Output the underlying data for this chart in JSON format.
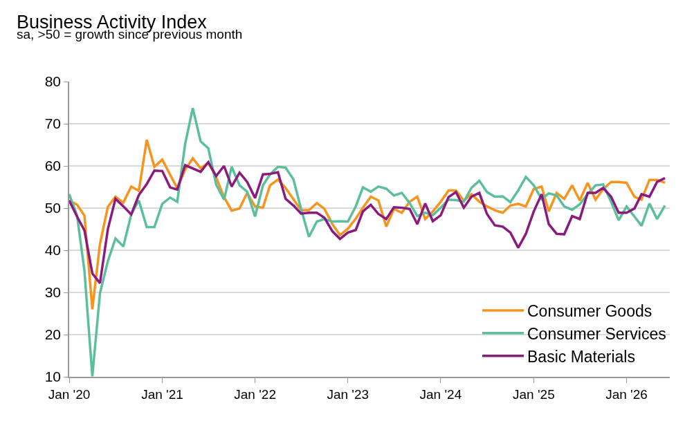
{
  "chart_data": {
    "type": "line",
    "title": "Business Activity Index",
    "subtitle": "sa, >50 = growth since previous month",
    "x": [
      "2020-01",
      "2020-02",
      "2020-03",
      "2020-04",
      "2020-05",
      "2020-06",
      "2020-07",
      "2020-08",
      "2020-09",
      "2020-10",
      "2020-11",
      "2020-12",
      "2021-01",
      "2021-02",
      "2021-03",
      "2021-04",
      "2021-05",
      "2021-06",
      "2021-07",
      "2021-08",
      "2021-09",
      "2021-10",
      "2021-11",
      "2021-12",
      "2022-01",
      "2022-02",
      "2022-03",
      "2022-04",
      "2022-05",
      "2022-06",
      "2022-07",
      "2022-08",
      "2022-09",
      "2022-10",
      "2022-11",
      "2022-12",
      "2023-01",
      "2023-02",
      "2023-03",
      "2023-04",
      "2023-05",
      "2023-06",
      "2023-07",
      "2023-08",
      "2023-09",
      "2023-10",
      "2023-11",
      "2023-12",
      "2024-01",
      "2024-02",
      "2024-03",
      "2024-04",
      "2024-05",
      "2024-06",
      "2024-07",
      "2024-08",
      "2024-09",
      "2024-10",
      "2024-11",
      "2024-12",
      "2025-01",
      "2025-02",
      "2025-03",
      "2025-04",
      "2025-05",
      "2025-06",
      "2025-07",
      "2025-08",
      "2025-09",
      "2025-10",
      "2025-11",
      "2025-12",
      "2026-01",
      "2026-02",
      "2026-03",
      "2026-04",
      "2026-05",
      "2026-06"
    ],
    "series": [
      {
        "name": "Consumer Goods",
        "color": "#f7941d",
        "values": [
          51.8,
          50.8,
          48.2,
          26.0,
          41.5,
          50.3,
          52.7,
          51.3,
          55.1,
          54.1,
          66.2,
          59.8,
          61.5,
          57.9,
          54.7,
          59.1,
          61.8,
          59.4,
          60.8,
          57.3,
          52.6,
          49.4,
          49.9,
          53.6,
          50.4,
          50.1,
          55.4,
          56.8,
          54.8,
          52.1,
          49.5,
          49.5,
          51.2,
          49.8,
          46.2,
          43.6,
          45.1,
          47.5,
          50.1,
          52.7,
          51.8,
          45.6,
          49.8,
          48.9,
          51.5,
          52.7,
          47.4,
          49.2,
          51.5,
          54.2,
          54.2,
          51.8,
          53.3,
          51.5,
          50.4,
          49.5,
          48.9,
          50.6,
          51.0,
          50.4,
          54.5,
          55.1,
          49.2,
          53.6,
          52.2,
          55.4,
          51.8,
          56.0,
          52.0,
          54.5,
          56.2,
          56.2,
          56.0,
          52.7,
          52.0,
          56.7,
          56.7,
          56.0
        ]
      },
      {
        "name": "Consumer Services",
        "color": "#5bbf9f",
        "values": [
          53.3,
          48.2,
          35.1,
          10.1,
          29.8,
          37.4,
          42.8,
          40.9,
          48.5,
          51.8,
          45.5,
          45.5,
          51.0,
          52.5,
          51.5,
          65.2,
          73.7,
          65.8,
          64.2,
          55.6,
          52.0,
          59.8,
          55.4,
          53.9,
          48.0,
          55.4,
          58.0,
          59.8,
          59.6,
          56.8,
          49.8,
          43.2,
          46.8,
          47.4,
          46.8,
          46.9,
          46.8,
          50.4,
          54.9,
          53.9,
          55.1,
          54.6,
          53.0,
          53.6,
          51.2,
          48.1,
          48.9,
          48.3,
          50.1,
          52.0,
          51.9,
          51.5,
          54.8,
          56.5,
          53.8,
          52.7,
          52.8,
          51.4,
          54.2,
          57.4,
          55.4,
          52.1,
          53.5,
          53.0,
          50.4,
          49.6,
          50.9,
          53.3,
          55.4,
          55.6,
          51.5,
          47.1,
          50.4,
          48.0,
          45.8,
          51.1,
          47.4,
          50.6
        ]
      },
      {
        "name": "Basic Materials",
        "color": "#8b1a7e",
        "values": [
          51.8,
          48.0,
          44.7,
          34.5,
          32.2,
          45.0,
          52.2,
          50.4,
          48.5,
          53.1,
          55.7,
          58.9,
          58.8,
          54.9,
          54.4,
          60.2,
          59.4,
          58.6,
          60.9,
          57.6,
          60.0,
          55.1,
          58.4,
          56.2,
          52.4,
          58.0,
          58.1,
          58.5,
          52.2,
          50.6,
          48.7,
          48.9,
          48.9,
          47.7,
          44.5,
          42.7,
          44.2,
          44.8,
          49.2,
          50.8,
          48.6,
          47.4,
          50.2,
          50.1,
          49.8,
          46.2,
          51.1,
          46.9,
          48.3,
          52.6,
          53.8,
          50.1,
          52.7,
          53.6,
          48.6,
          45.9,
          45.6,
          44.2,
          40.6,
          43.9,
          49.2,
          53.3,
          46.2,
          43.9,
          43.8,
          48.1,
          47.4,
          53.6,
          53.6,
          54.8,
          52.7,
          48.9,
          48.9,
          49.9,
          53.3,
          52.7,
          56.2,
          57.1
        ]
      }
    ],
    "xlim": [
      "2020-01-01",
      "2026-06-20"
    ],
    "xticks": [
      {
        "value": "2020-01",
        "label": "Jan '20"
      },
      {
        "value": "2021-01",
        "label": "Jan '21"
      },
      {
        "value": "2022-01",
        "label": "Jan '22"
      },
      {
        "value": "2023-01",
        "label": "Jan '23"
      },
      {
        "value": "2024-01",
        "label": "Jan '24"
      },
      {
        "value": "2025-01",
        "label": "Jan '25"
      },
      {
        "value": "2026-01",
        "label": "Jan '26"
      }
    ],
    "ylim": [
      10,
      80
    ],
    "yticks": [
      10,
      20,
      30,
      40,
      50,
      60,
      70,
      80
    ],
    "grid": "y",
    "legend": "bottom right",
    "marker": "none",
    "line_style": "solid"
  }
}
